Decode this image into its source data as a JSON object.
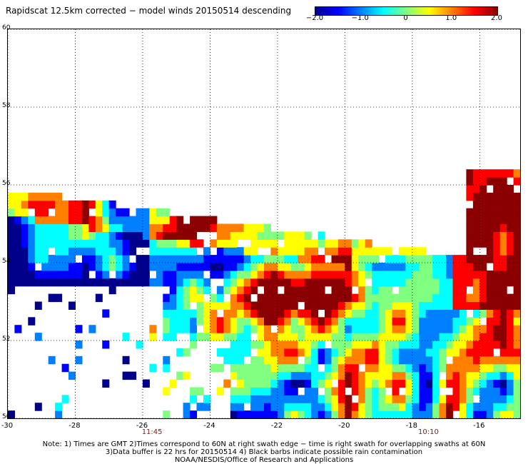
{
  "title": "Rapidscat 12.5km corrected − model winds 20150514 descending",
  "colorbar": {
    "ticks": [
      "−2.0",
      "−1.0",
      "0",
      "1.0",
      "2.0"
    ],
    "tick_values": [
      -2.0,
      -1.0,
      0,
      1.0,
      2.0
    ],
    "range": [
      -2.0,
      2.0
    ],
    "colors": [
      "#00008b",
      "#0000ff",
      "#0080ff",
      "#00ffff",
      "#80ff80",
      "#ffff00",
      "#ff8000",
      "#ff0000",
      "#8b0000"
    ]
  },
  "map": {
    "lon_range": [
      -30,
      -14.8
    ],
    "lat_range": [
      50,
      60
    ],
    "lat_labels": [
      "60",
      "58",
      "56",
      "54",
      "52",
      "50"
    ],
    "lat_values": [
      60,
      58,
      56,
      54,
      52,
      50
    ],
    "lon_labels": [
      "-30",
      "-28",
      "-26",
      "-24",
      "-22",
      "-20",
      "-18",
      "-16"
    ],
    "lon_values": [
      -30,
      -28,
      -26,
      -24,
      -22,
      -20,
      -18,
      -16
    ],
    "grid": "dotted",
    "time_labels": [
      {
        "text": "11:45",
        "lon": -25.7
      },
      {
        "text": "10:10",
        "lon": -17.5
      }
    ]
  },
  "notes": [
    "Note: 1) Times are GMT 2)Times correspond to 60N at right swath edge − time is right swath for overlapping swaths at 60N",
    "3)Data buffer is 22 hrs for 20150514 4) Black barbs indicate possible rain contamination",
    "NOAA/NESDIS/Office of Research and Applications"
  ]
}
